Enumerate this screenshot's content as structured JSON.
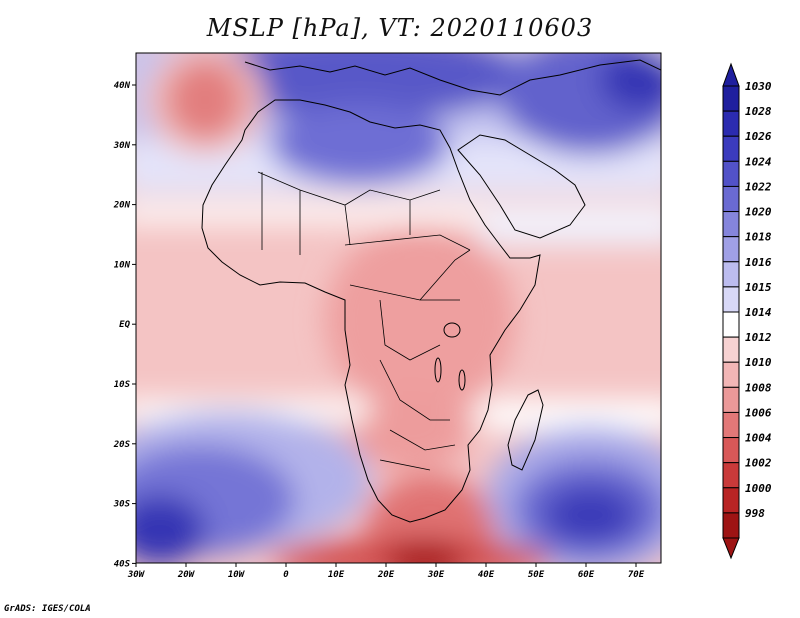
{
  "title": "MSLP [hPa], VT: 2020110603",
  "credit": "GrADS: IGES/COLA",
  "map": {
    "variable": "Mean Sea Level Pressure",
    "units": "hPa",
    "region": "Africa",
    "lon_labels": [
      "30W",
      "20W",
      "10W",
      "0",
      "10E",
      "20E",
      "30E",
      "40E",
      "50E",
      "60E",
      "70E"
    ],
    "lat_labels": [
      "40N",
      "30N",
      "20N",
      "10N",
      "EQ",
      "10S",
      "20S",
      "30S",
      "40S"
    ],
    "features": [
      {
        "name": "high-pressure-north-africa-mediterranean",
        "level": "1026"
      },
      {
        "name": "high-pressure-arabia-middle-east",
        "level": "1028"
      },
      {
        "name": "low-pressure-azores-area",
        "level": "1004"
      },
      {
        "name": "high-pressure-south-atlantic",
        "level": "1026"
      },
      {
        "name": "high-pressure-south-indian-ocean",
        "level": "1028"
      },
      {
        "name": "low-pressure-south-of-africa",
        "level": "1000"
      }
    ]
  },
  "colorbar": {
    "levels": [
      "1030",
      "1028",
      "1026",
      "1024",
      "1022",
      "1020",
      "1018",
      "1016",
      "1015",
      "1014",
      "1012",
      "1010",
      "1008",
      "1006",
      "1004",
      "1002",
      "1000",
      "998"
    ],
    "colors": [
      "#1f1f9e",
      "#2b2bb0",
      "#3b3bbd",
      "#5252c8",
      "#6a6ad2",
      "#8585dc",
      "#a0a0e6",
      "#bcbcef",
      "#d8d8f7",
      "#ffffff",
      "#f7d2d2",
      "#f2b6b6",
      "#eb9999",
      "#e27878",
      "#d85858",
      "#c93a3a",
      "#b82424",
      "#9e1414"
    ]
  }
}
